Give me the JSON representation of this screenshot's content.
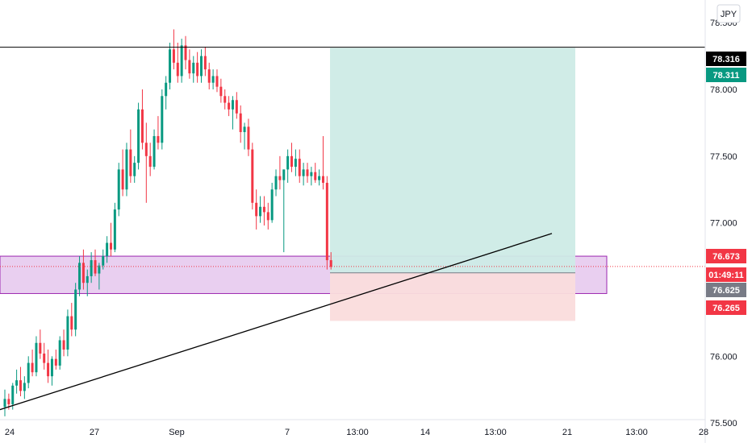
{
  "currency_label": "JPY",
  "chart_data": {
    "type": "candlestick",
    "title": "",
    "y_axis": {
      "range": [
        75.35,
        78.67
      ],
      "ticks": [
        "75.500",
        "76.000",
        "76.500",
        "77.000",
        "77.500",
        "78.000",
        "78.500"
      ]
    },
    "x_axis": {
      "ticks": [
        "24",
        "27",
        "Sep",
        "7",
        "13:00",
        "14",
        "13:00",
        "21",
        "13:00",
        "28"
      ]
    },
    "price_labels": [
      {
        "role": "horizontal-line",
        "value": 78.316,
        "text": "78.316",
        "color": "#000000"
      },
      {
        "role": "target",
        "value": 78.311,
        "text": "78.311",
        "color": "#089981"
      },
      {
        "role": "last-price",
        "value": 76.673,
        "text": "76.673",
        "color": "#f23645"
      },
      {
        "role": "countdown",
        "value": 76.673,
        "text": "01:49:11",
        "color": "#f23645"
      },
      {
        "role": "entry",
        "value": 76.625,
        "text": "76.625",
        "color": "#787b86"
      },
      {
        "role": "stop",
        "value": 76.265,
        "text": "76.265",
        "color": "#f23645"
      }
    ],
    "horizontal_line": 78.316,
    "last_price": 76.673,
    "support_zone": {
      "top": 76.75,
      "bottom": 76.47
    },
    "position": {
      "entry": 76.625,
      "target": 78.311,
      "stop": 76.265
    },
    "trendline": {
      "start_price": 75.6,
      "end_price": 76.92
    },
    "colors": {
      "up": "#089981",
      "down": "#f23645",
      "zone_fill": "#e9cff0",
      "zone_border": "#9c27b0",
      "profit_fill": "#cdebe6",
      "loss_fill": "#fadcdc",
      "line": "#000000"
    },
    "candles": [
      [
        75.62,
        75.75,
        75.55,
        75.68
      ],
      [
        75.68,
        75.72,
        75.6,
        75.64
      ],
      [
        75.64,
        75.8,
        75.6,
        75.78
      ],
      [
        75.78,
        75.9,
        75.72,
        75.82
      ],
      [
        75.82,
        75.92,
        75.7,
        75.74
      ],
      [
        75.74,
        75.85,
        75.68,
        75.8
      ],
      [
        75.8,
        76.0,
        75.76,
        75.95
      ],
      [
        75.95,
        76.05,
        75.85,
        75.88
      ],
      [
        75.88,
        76.15,
        75.85,
        76.1
      ],
      [
        76.1,
        76.2,
        75.98,
        76.02
      ],
      [
        76.02,
        76.1,
        75.9,
        75.95
      ],
      [
        75.95,
        76.05,
        75.8,
        75.85
      ],
      [
        75.85,
        76.0,
        75.78,
        75.98
      ],
      [
        75.98,
        76.05,
        75.9,
        75.93
      ],
      [
        75.93,
        76.15,
        75.9,
        76.12
      ],
      [
        76.12,
        76.2,
        76.0,
        76.05
      ],
      [
        76.05,
        76.35,
        76.0,
        76.3
      ],
      [
        76.3,
        76.4,
        76.15,
        76.2
      ],
      [
        76.2,
        76.55,
        76.15,
        76.5
      ],
      [
        76.5,
        76.75,
        76.45,
        76.7
      ],
      [
        76.7,
        76.8,
        76.5,
        76.55
      ],
      [
        76.55,
        76.65,
        76.45,
        76.6
      ],
      [
        76.6,
        76.78,
        76.55,
        76.72
      ],
      [
        76.72,
        76.8,
        76.6,
        76.62
      ],
      [
        76.62,
        76.7,
        76.5,
        76.68
      ],
      [
        76.68,
        76.8,
        76.65,
        76.75
      ],
      [
        76.75,
        76.9,
        76.7,
        76.85
      ],
      [
        76.85,
        77.0,
        76.75,
        76.8
      ],
      [
        76.8,
        77.15,
        76.78,
        77.1
      ],
      [
        77.1,
        77.45,
        77.05,
        77.4
      ],
      [
        77.4,
        77.55,
        77.2,
        77.25
      ],
      [
        77.25,
        77.6,
        77.2,
        77.55
      ],
      [
        77.55,
        77.7,
        77.3,
        77.35
      ],
      [
        77.35,
        77.5,
        77.3,
        77.45
      ],
      [
        77.45,
        77.9,
        77.4,
        77.85
      ],
      [
        77.85,
        78.0,
        77.55,
        77.6
      ],
      [
        77.6,
        77.75,
        77.15,
        77.5
      ],
      [
        77.5,
        77.6,
        77.35,
        77.42
      ],
      [
        77.42,
        77.7,
        77.4,
        77.65
      ],
      [
        77.65,
        77.8,
        77.55,
        77.6
      ],
      [
        77.6,
        78.0,
        77.55,
        77.95
      ],
      [
        77.95,
        78.1,
        77.85,
        78.05
      ],
      [
        78.05,
        78.35,
        78.0,
        78.3
      ],
      [
        78.3,
        78.45,
        78.15,
        78.2
      ],
      [
        78.2,
        78.35,
        78.05,
        78.1
      ],
      [
        78.1,
        78.38,
        78.05,
        78.33
      ],
      [
        78.33,
        78.4,
        78.15,
        78.22
      ],
      [
        78.22,
        78.3,
        78.08,
        78.12
      ],
      [
        78.12,
        78.25,
        78.05,
        78.2
      ],
      [
        78.2,
        78.28,
        78.05,
        78.1
      ],
      [
        78.1,
        78.3,
        78.05,
        78.25
      ],
      [
        78.25,
        78.32,
        78.1,
        78.15
      ],
      [
        78.15,
        78.2,
        78.0,
        78.05
      ],
      [
        78.05,
        78.15,
        78.0,
        78.1
      ],
      [
        78.1,
        78.15,
        77.98,
        78.02
      ],
      [
        78.02,
        78.08,
        77.9,
        77.95
      ],
      [
        77.95,
        78.0,
        77.85,
        77.9
      ],
      [
        77.9,
        77.95,
        77.8,
        77.85
      ],
      [
        77.85,
        77.95,
        77.7,
        77.92
      ],
      [
        77.92,
        77.98,
        77.78,
        77.82
      ],
      [
        77.82,
        77.88,
        77.6,
        77.68
      ],
      [
        77.68,
        77.75,
        77.55,
        77.72
      ],
      [
        77.72,
        77.78,
        77.5,
        77.55
      ],
      [
        77.55,
        77.6,
        77.1,
        77.15
      ],
      [
        77.15,
        77.25,
        76.95,
        77.05
      ],
      [
        77.05,
        77.2,
        77.0,
        77.12
      ],
      [
        77.12,
        77.2,
        76.98,
        77.08
      ],
      [
        77.08,
        77.15,
        76.95,
        77.02
      ],
      [
        77.02,
        77.3,
        77.0,
        77.25
      ],
      [
        77.25,
        77.4,
        77.2,
        77.35
      ],
      [
        77.35,
        77.5,
        77.25,
        77.32
      ],
      [
        77.32,
        77.4,
        76.78,
        77.4
      ],
      [
        77.4,
        77.55,
        77.3,
        77.5
      ],
      [
        77.5,
        77.6,
        77.38,
        77.42
      ],
      [
        77.42,
        77.55,
        77.35,
        77.48
      ],
      [
        77.48,
        77.55,
        77.3,
        77.35
      ],
      [
        77.35,
        77.45,
        77.28,
        77.4
      ],
      [
        77.4,
        77.45,
        77.3,
        77.35
      ],
      [
        77.35,
        77.42,
        77.28,
        77.38
      ],
      [
        77.38,
        77.45,
        77.3,
        77.32
      ],
      [
        77.32,
        77.4,
        77.28,
        77.35
      ],
      [
        77.35,
        77.65,
        77.25,
        77.3
      ],
      [
        77.3,
        77.35,
        76.65,
        76.72
      ],
      [
        76.72,
        76.78,
        76.65,
        76.67
      ]
    ]
  }
}
